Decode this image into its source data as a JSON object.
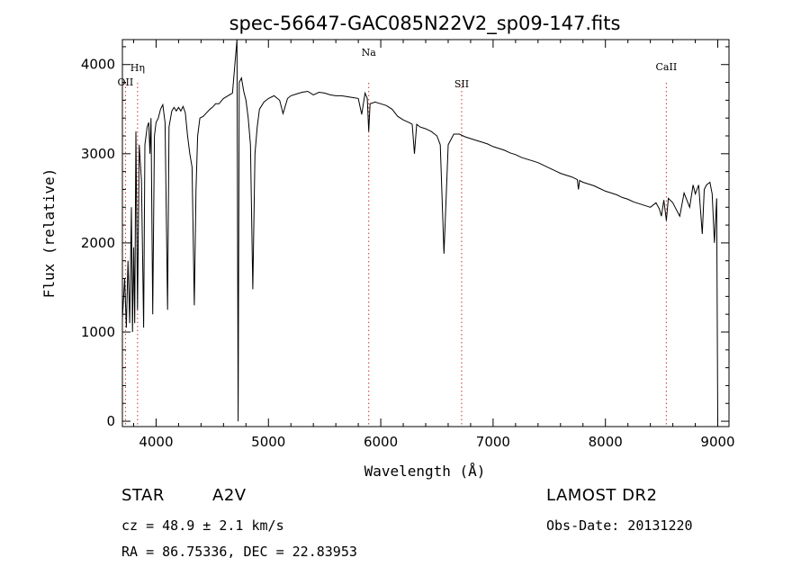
{
  "chart_data": {
    "type": "line",
    "title": "spec-56647-GAC085N22V2_sp09-147.fits",
    "xlabel": "Wavelength (Å)",
    "ylabel": "Flux (relative)",
    "xlim": [
      3700,
      9100
    ],
    "ylim": [
      -60,
      4280
    ],
    "xticks": [
      4000,
      5000,
      6000,
      7000,
      8000,
      9000
    ],
    "yticks": [
      0,
      1000,
      2000,
      3000,
      4000
    ],
    "grid": false,
    "line_color": "#000000",
    "marker_color": "#cc3333",
    "line_markers": [
      {
        "label": "OII",
        "x": 3727
      },
      {
        "label": "Hη",
        "x": 3835
      },
      {
        "label": "Na",
        "x": 5893
      },
      {
        "label": "SII",
        "x": 6720
      },
      {
        "label": "CaII",
        "x": 8542
      }
    ],
    "series": [
      {
        "points": [
          [
            3700,
            1150
          ],
          [
            3720,
            1600
          ],
          [
            3735,
            1050
          ],
          [
            3750,
            1800
          ],
          [
            3765,
            1100
          ],
          [
            3780,
            2400
          ],
          [
            3790,
            1000
          ],
          [
            3800,
            1950
          ],
          [
            3810,
            1100
          ],
          [
            3820,
            3250
          ],
          [
            3835,
            1250
          ],
          [
            3850,
            3100
          ],
          [
            3870,
            2700
          ],
          [
            3889,
            1050
          ],
          [
            3900,
            3100
          ],
          [
            3920,
            3300
          ],
          [
            3935,
            3350
          ],
          [
            3945,
            3000
          ],
          [
            3955,
            3400
          ],
          [
            3970,
            1200
          ],
          [
            3985,
            3200
          ],
          [
            4000,
            3350
          ],
          [
            4020,
            3400
          ],
          [
            4040,
            3500
          ],
          [
            4060,
            3550
          ],
          [
            4080,
            3350
          ],
          [
            4102,
            1250
          ],
          [
            4115,
            3300
          ],
          [
            4140,
            3480
          ],
          [
            4160,
            3520
          ],
          [
            4180,
            3480
          ],
          [
            4200,
            3520
          ],
          [
            4220,
            3480
          ],
          [
            4240,
            3530
          ],
          [
            4260,
            3460
          ],
          [
            4280,
            3200
          ],
          [
            4300,
            3000
          ],
          [
            4320,
            2850
          ],
          [
            4340,
            1300
          ],
          [
            4355,
            2600
          ],
          [
            4370,
            3200
          ],
          [
            4390,
            3400
          ],
          [
            4420,
            3420
          ],
          [
            4450,
            3460
          ],
          [
            4480,
            3500
          ],
          [
            4500,
            3520
          ],
          [
            4530,
            3560
          ],
          [
            4560,
            3560
          ],
          [
            4600,
            3620
          ],
          [
            4640,
            3650
          ],
          [
            4680,
            3680
          ],
          [
            4720,
            4280
          ],
          [
            4730,
            0
          ],
          [
            4740,
            3800
          ],
          [
            4760,
            3850
          ],
          [
            4780,
            3700
          ],
          [
            4800,
            3600
          ],
          [
            4820,
            3400
          ],
          [
            4840,
            3100
          ],
          [
            4861,
            1480
          ],
          [
            4880,
            3000
          ],
          [
            4900,
            3300
          ],
          [
            4920,
            3500
          ],
          [
            4960,
            3580
          ],
          [
            5000,
            3620
          ],
          [
            5050,
            3650
          ],
          [
            5100,
            3600
          ],
          [
            5130,
            3450
          ],
          [
            5170,
            3620
          ],
          [
            5200,
            3650
          ],
          [
            5250,
            3670
          ],
          [
            5300,
            3690
          ],
          [
            5350,
            3700
          ],
          [
            5400,
            3660
          ],
          [
            5450,
            3690
          ],
          [
            5500,
            3680
          ],
          [
            5550,
            3660
          ],
          [
            5600,
            3650
          ],
          [
            5650,
            3650
          ],
          [
            5700,
            3640
          ],
          [
            5750,
            3630
          ],
          [
            5800,
            3620
          ],
          [
            5830,
            3440
          ],
          [
            5860,
            3680
          ],
          [
            5880,
            3620
          ],
          [
            5893,
            3250
          ],
          [
            5905,
            3560
          ],
          [
            5950,
            3580
          ],
          [
            6000,
            3560
          ],
          [
            6050,
            3540
          ],
          [
            6100,
            3500
          ],
          [
            6150,
            3420
          ],
          [
            6200,
            3380
          ],
          [
            6250,
            3350
          ],
          [
            6280,
            3330
          ],
          [
            6300,
            3000
          ],
          [
            6320,
            3330
          ],
          [
            6350,
            3300
          ],
          [
            6400,
            3280
          ],
          [
            6450,
            3250
          ],
          [
            6500,
            3200
          ],
          [
            6530,
            3100
          ],
          [
            6563,
            1880
          ],
          [
            6600,
            3100
          ],
          [
            6650,
            3220
          ],
          [
            6700,
            3220
          ],
          [
            6750,
            3190
          ],
          [
            6800,
            3170
          ],
          [
            6850,
            3150
          ],
          [
            6900,
            3130
          ],
          [
            6950,
            3110
          ],
          [
            7000,
            3080
          ],
          [
            7050,
            3060
          ],
          [
            7100,
            3040
          ],
          [
            7150,
            3010
          ],
          [
            7200,
            2990
          ],
          [
            7250,
            2960
          ],
          [
            7300,
            2940
          ],
          [
            7350,
            2920
          ],
          [
            7400,
            2900
          ],
          [
            7450,
            2870
          ],
          [
            7500,
            2840
          ],
          [
            7550,
            2810
          ],
          [
            7600,
            2780
          ],
          [
            7650,
            2760
          ],
          [
            7700,
            2740
          ],
          [
            7750,
            2710
          ],
          [
            7760,
            2600
          ],
          [
            7770,
            2700
          ],
          [
            7800,
            2680
          ],
          [
            7850,
            2660
          ],
          [
            7900,
            2640
          ],
          [
            7950,
            2610
          ],
          [
            8000,
            2580
          ],
          [
            8050,
            2560
          ],
          [
            8100,
            2540
          ],
          [
            8150,
            2510
          ],
          [
            8200,
            2490
          ],
          [
            8250,
            2460
          ],
          [
            8300,
            2440
          ],
          [
            8350,
            2420
          ],
          [
            8400,
            2400
          ],
          [
            8450,
            2450
          ],
          [
            8480,
            2380
          ],
          [
            8498,
            2300
          ],
          [
            8520,
            2480
          ],
          [
            8542,
            2250
          ],
          [
            8560,
            2500
          ],
          [
            8600,
            2450
          ],
          [
            8620,
            2400
          ],
          [
            8662,
            2300
          ],
          [
            8700,
            2560
          ],
          [
            8750,
            2400
          ],
          [
            8780,
            2650
          ],
          [
            8800,
            2550
          ],
          [
            8830,
            2650
          ],
          [
            8862,
            2100
          ],
          [
            8880,
            2600
          ],
          [
            8900,
            2650
          ],
          [
            8930,
            2680
          ],
          [
            8950,
            2550
          ],
          [
            8970,
            2000
          ],
          [
            8990,
            2500
          ],
          [
            9000,
            0
          ]
        ]
      }
    ]
  },
  "info": {
    "star_label": "STAR",
    "class_label": "A2V",
    "survey": "LAMOST DR2",
    "cz": "cz = 48.9 ± 2.1 km/s",
    "obs_date": "Obs-Date: 20131220",
    "coords": "RA =  86.75336, DEC =  22.83953"
  }
}
